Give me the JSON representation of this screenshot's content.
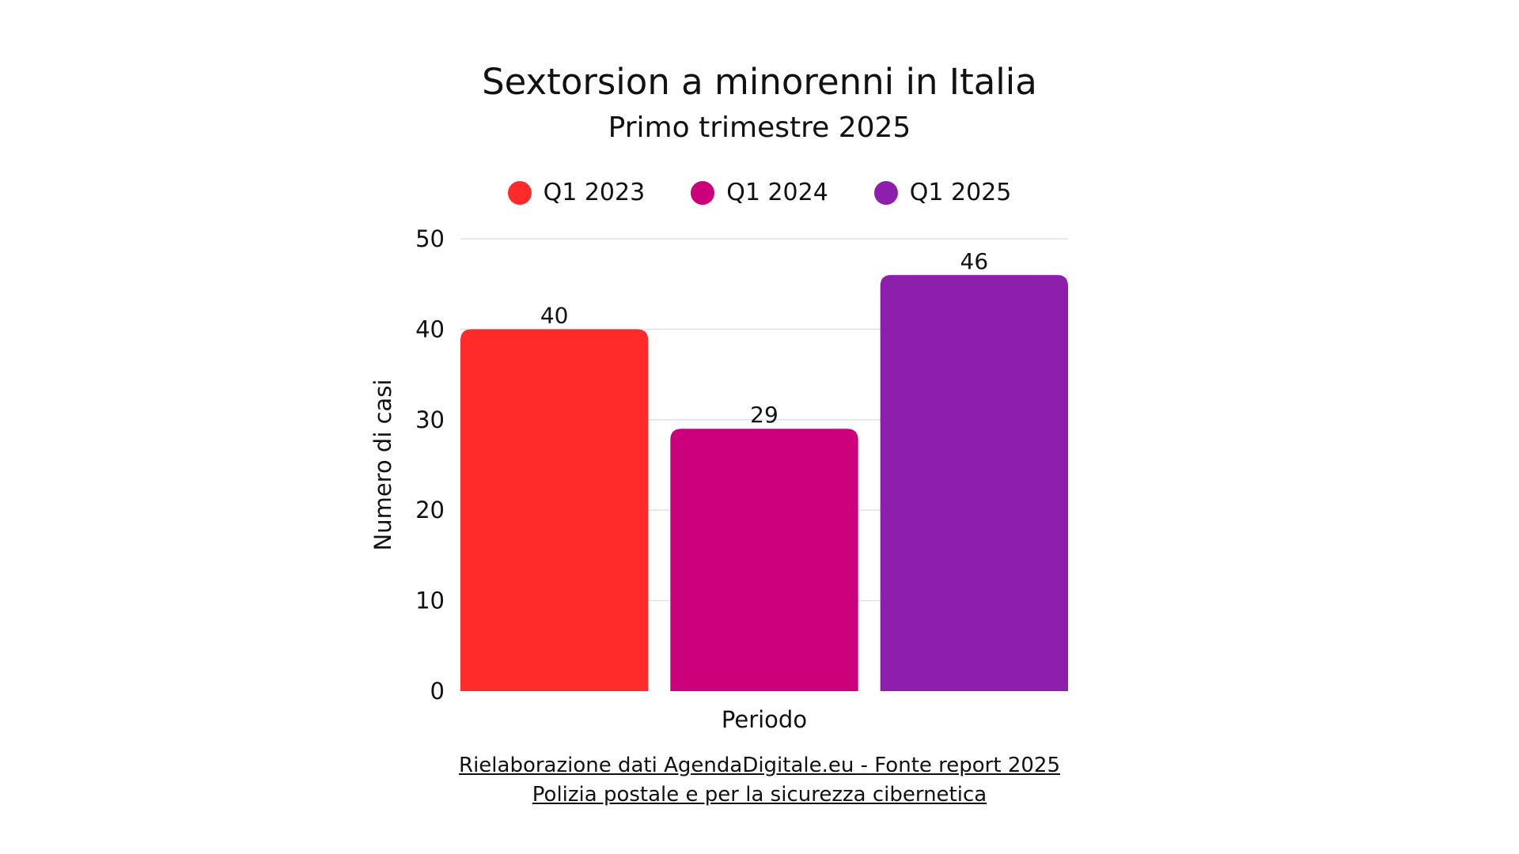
{
  "chart_data": {
    "type": "bar",
    "title": "Sextorsion a minorenni in Italia",
    "subtitle": "Primo trimestre 2025",
    "categories": [
      "Periodo"
    ],
    "series": [
      {
        "name": "Q1 2023",
        "values": [
          40
        ],
        "color": "#ff2a2a"
      },
      {
        "name": "Q1 2024",
        "values": [
          29
        ],
        "color": "#cc007a"
      },
      {
        "name": "Q1 2025",
        "values": [
          46
        ],
        "color": "#8e1fad"
      }
    ],
    "xlabel": "Periodo",
    "ylabel": "Numero di casi",
    "ylim": [
      0,
      50
    ],
    "yticks": [
      0,
      10,
      20,
      30,
      40,
      50
    ],
    "grid": true,
    "legend": "top-center"
  },
  "footer": {
    "line1": "Rielaborazione dati AgendaDigitale.eu - Fonte report 2025",
    "line2": "Polizia postale e per la sicurezza cibernetica"
  }
}
